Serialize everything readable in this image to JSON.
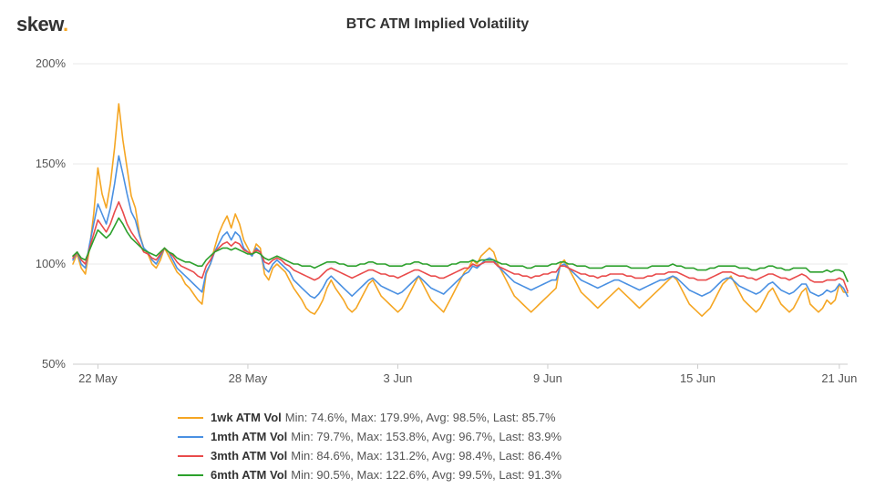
{
  "logo": {
    "text": "skew",
    "dot": ".",
    "text_color": "#111",
    "dot_color": "#f5a623",
    "fontsize": 22
  },
  "title": {
    "text": "BTC ATM Implied Volatility",
    "fontsize": 16,
    "color": "#333"
  },
  "chart": {
    "type": "line",
    "background_color": "#ffffff",
    "grid_color": "#e9e9e9",
    "axis_color": "#cccccc",
    "y": {
      "min": 50,
      "max": 200,
      "ticks": [
        50,
        100,
        150,
        200
      ],
      "tick_labels": [
        "50%",
        "100%",
        "150%",
        "200%"
      ],
      "fontsize": 13
    },
    "x": {
      "min": 0,
      "max": 186,
      "ticks": [
        6,
        42,
        78,
        114,
        150,
        184
      ],
      "tick_labels": [
        "22 May",
        "28 May",
        "3 Jun",
        "9 Jun",
        "15 Jun",
        "21 Jun"
      ],
      "fontsize": 13
    },
    "line_width": 1.6,
    "series": [
      {
        "name": "1wk ATM Vol",
        "color": "#f5a623",
        "stats": {
          "min": "74.6%",
          "max": "179.9%",
          "avg": "98.5%",
          "last": "85.7%"
        },
        "values": [
          100,
          105,
          98,
          95,
          108,
          125,
          148,
          135,
          128,
          140,
          158,
          180,
          162,
          148,
          134,
          128,
          115,
          108,
          105,
          100,
          98,
          102,
          108,
          104,
          100,
          96,
          94,
          90,
          88,
          85,
          82,
          80,
          95,
          100,
          108,
          115,
          120,
          124,
          118,
          125,
          120,
          112,
          108,
          104,
          110,
          108,
          95,
          92,
          98,
          100,
          98,
          96,
          92,
          88,
          85,
          82,
          78,
          76,
          75,
          78,
          82,
          88,
          92,
          88,
          85,
          82,
          78,
          76,
          78,
          82,
          86,
          90,
          92,
          88,
          84,
          82,
          80,
          78,
          76,
          78,
          82,
          86,
          90,
          94,
          90,
          86,
          82,
          80,
          78,
          76,
          80,
          84,
          88,
          92,
          96,
          98,
          102,
          100,
          104,
          106,
          108,
          106,
          100,
          96,
          92,
          88,
          84,
          82,
          80,
          78,
          76,
          78,
          80,
          82,
          84,
          86,
          88,
          100,
          102,
          98,
          94,
          90,
          86,
          84,
          82,
          80,
          78,
          80,
          82,
          84,
          86,
          88,
          86,
          84,
          82,
          80,
          78,
          80,
          82,
          84,
          86,
          88,
          90,
          92,
          94,
          92,
          88,
          84,
          80,
          78,
          76,
          74,
          76,
          78,
          82,
          86,
          90,
          92,
          94,
          90,
          86,
          82,
          80,
          78,
          76,
          78,
          82,
          86,
          88,
          84,
          80,
          78,
          76,
          78,
          82,
          86,
          88,
          80,
          78,
          76,
          78,
          82,
          80,
          82,
          90,
          86,
          85.7
        ]
      },
      {
        "name": "1mth ATM Vol",
        "color": "#4a90e2",
        "stats": {
          "min": "79.7%",
          "max": "153.8%",
          "avg": "96.7%",
          "last": "83.9%"
        },
        "values": [
          102,
          106,
          100,
          98,
          110,
          120,
          130,
          125,
          120,
          128,
          140,
          154,
          145,
          135,
          126,
          122,
          114,
          108,
          106,
          102,
          100,
          104,
          108,
          106,
          102,
          98,
          96,
          94,
          92,
          90,
          88,
          86,
          96,
          100,
          106,
          110,
          114,
          116,
          112,
          116,
          114,
          108,
          106,
          104,
          108,
          106,
          98,
          96,
          100,
          102,
          100,
          98,
          96,
          92,
          90,
          88,
          86,
          84,
          83,
          85,
          88,
          92,
          94,
          92,
          90,
          88,
          86,
          84,
          86,
          88,
          90,
          92,
          93,
          91,
          89,
          88,
          87,
          86,
          85,
          86,
          88,
          90,
          92,
          94,
          92,
          90,
          88,
          87,
          86,
          85,
          87,
          89,
          91,
          93,
          95,
          96,
          99,
          98,
          100,
          102,
          103,
          102,
          99,
          97,
          95,
          93,
          91,
          90,
          89,
          88,
          87,
          88,
          89,
          90,
          91,
          92,
          92,
          99,
          100,
          98,
          96,
          94,
          92,
          91,
          90,
          89,
          88,
          89,
          90,
          91,
          92,
          92,
          91,
          90,
          89,
          88,
          87,
          88,
          89,
          90,
          91,
          92,
          92,
          93,
          94,
          93,
          91,
          89,
          87,
          86,
          85,
          84,
          85,
          86,
          88,
          90,
          92,
          93,
          93,
          91,
          89,
          88,
          87,
          86,
          85,
          86,
          88,
          90,
          91,
          89,
          87,
          86,
          85,
          86,
          88,
          90,
          90,
          86,
          85,
          84,
          85,
          87,
          86,
          87,
          90,
          88,
          83.9
        ]
      },
      {
        "name": "3mth ATM Vol",
        "color": "#e94b4b",
        "stats": {
          "min": "84.6%",
          "max": "131.2%",
          "avg": "98.4%",
          "last": "86.4%"
        },
        "values": [
          103,
          106,
          102,
          100,
          108,
          115,
          122,
          119,
          116,
          120,
          126,
          131,
          126,
          120,
          116,
          113,
          110,
          106,
          105,
          103,
          102,
          105,
          108,
          106,
          104,
          101,
          99,
          98,
          97,
          96,
          94,
          93,
          99,
          102,
          106,
          108,
          110,
          111,
          109,
          111,
          110,
          107,
          106,
          105,
          107,
          106,
          101,
          100,
          102,
          103,
          102,
          100,
          99,
          97,
          96,
          95,
          94,
          93,
          92,
          93,
          95,
          97,
          98,
          97,
          96,
          95,
          94,
          93,
          94,
          95,
          96,
          97,
          97,
          96,
          95,
          95,
          94,
          94,
          93,
          94,
          95,
          96,
          97,
          97,
          96,
          95,
          94,
          94,
          93,
          93,
          94,
          95,
          96,
          97,
          98,
          98,
          100,
          99,
          100,
          101,
          101,
          101,
          99,
          98,
          97,
          96,
          95,
          95,
          94,
          94,
          93,
          94,
          94,
          95,
          95,
          96,
          96,
          99,
          99,
          98,
          97,
          96,
          95,
          95,
          94,
          94,
          93,
          94,
          94,
          95,
          95,
          95,
          95,
          94,
          94,
          93,
          93,
          93,
          94,
          94,
          95,
          95,
          95,
          96,
          96,
          96,
          95,
          94,
          93,
          93,
          92,
          92,
          92,
          93,
          94,
          95,
          96,
          96,
          96,
          95,
          94,
          94,
          93,
          93,
          92,
          93,
          94,
          95,
          95,
          94,
          93,
          93,
          92,
          93,
          94,
          95,
          94,
          92,
          91,
          91,
          91,
          92,
          92,
          92,
          93,
          92,
          86.4
        ]
      },
      {
        "name": "6mth ATM Vol",
        "color": "#2ca02c",
        "stats": {
          "min": "90.5%",
          "max": "122.6%",
          "avg": "99.5%",
          "last": "91.3%"
        },
        "values": [
          104,
          106,
          103,
          102,
          107,
          112,
          117,
          115,
          113,
          115,
          119,
          123,
          120,
          116,
          113,
          111,
          109,
          107,
          106,
          105,
          104,
          106,
          108,
          106,
          105,
          103,
          102,
          101,
          101,
          100,
          99,
          99,
          102,
          104,
          106,
          107,
          108,
          108,
          107,
          108,
          107,
          106,
          105,
          105,
          106,
          105,
          103,
          102,
          103,
          104,
          103,
          102,
          101,
          100,
          100,
          99,
          99,
          99,
          98,
          99,
          100,
          101,
          101,
          101,
          100,
          100,
          99,
          99,
          99,
          100,
          100,
          101,
          101,
          100,
          100,
          100,
          99,
          99,
          99,
          99,
          100,
          100,
          101,
          101,
          100,
          100,
          99,
          99,
          99,
          99,
          99,
          100,
          100,
          101,
          101,
          101,
          102,
          101,
          102,
          102,
          102,
          102,
          101,
          100,
          100,
          99,
          99,
          99,
          99,
          98,
          98,
          99,
          99,
          99,
          99,
          100,
          100,
          101,
          101,
          100,
          100,
          99,
          99,
          99,
          98,
          98,
          98,
          98,
          99,
          99,
          99,
          99,
          99,
          99,
          98,
          98,
          98,
          98,
          98,
          99,
          99,
          99,
          99,
          99,
          100,
          99,
          99,
          98,
          98,
          98,
          97,
          97,
          97,
          98,
          98,
          99,
          99,
          99,
          99,
          99,
          98,
          98,
          98,
          97,
          97,
          98,
          98,
          99,
          99,
          98,
          98,
          97,
          97,
          98,
          98,
          98,
          98,
          96,
          96,
          96,
          96,
          97,
          96,
          97,
          97,
          96,
          91.3
        ]
      }
    ]
  },
  "legend": {
    "fontsize": 13,
    "line_length": 28
  }
}
